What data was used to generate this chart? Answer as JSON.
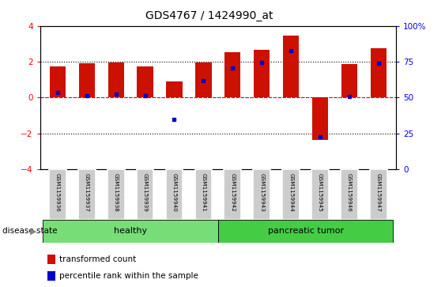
{
  "title": "GDS4767 / 1424990_at",
  "samples": [
    "GSM1159936",
    "GSM1159937",
    "GSM1159938",
    "GSM1159939",
    "GSM1159940",
    "GSM1159941",
    "GSM1159942",
    "GSM1159943",
    "GSM1159944",
    "GSM1159945",
    "GSM1159946",
    "GSM1159947"
  ],
  "transformed_count": [
    1.75,
    1.9,
    1.95,
    1.75,
    0.9,
    1.95,
    2.55,
    2.65,
    3.45,
    -2.35,
    1.85,
    2.75
  ],
  "percentile_rank": [
    0.3,
    0.1,
    0.2,
    0.1,
    -1.2,
    0.95,
    1.65,
    1.95,
    2.6,
    -2.2,
    0.05,
    1.9
  ],
  "healthy_indices": [
    0,
    1,
    2,
    3,
    4,
    5
  ],
  "tumor_indices": [
    6,
    7,
    8,
    9,
    10,
    11
  ],
  "ylim": [
    -4,
    4
  ],
  "yticks_left": [
    -4,
    -2,
    0,
    2,
    4
  ],
  "right_yticks": [
    0,
    25,
    50,
    75,
    100
  ],
  "bar_color": "#CC1100",
  "dot_color": "#0000CC",
  "healthy_color": "#77DD77",
  "tumor_color": "#44CC44",
  "bg_color": "#CCCCCC",
  "bar_width": 0.55,
  "disease_label": "disease state",
  "healthy_label": "healthy",
  "tumor_label": "pancreatic tumor",
  "legend_red": "transformed count",
  "legend_blue": "percentile rank within the sample"
}
